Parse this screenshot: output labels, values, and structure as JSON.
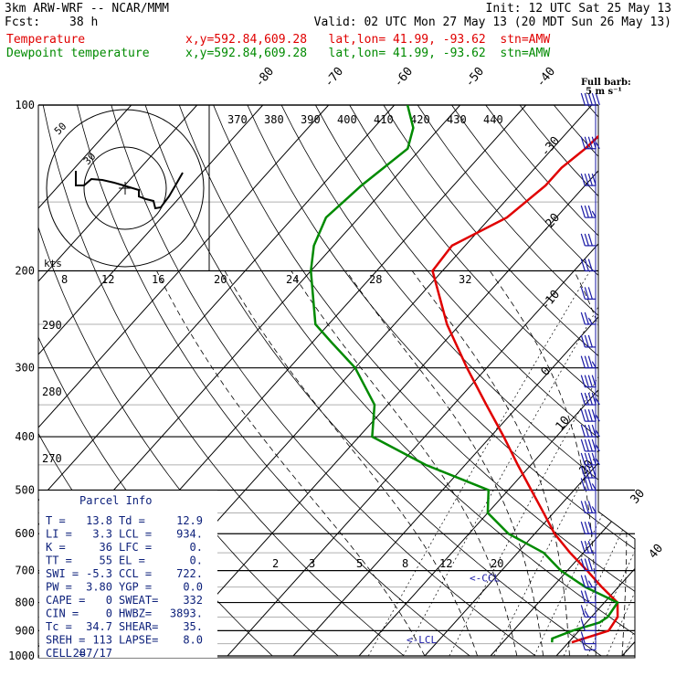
{
  "header": {
    "title": "3km ARW-WRF -- NCAR/MMM",
    "init": "Init: 12 UTC Sat 25 May 13",
    "fcst_label": "Fcst:",
    "fcst_value": "38 h",
    "valid": "Valid: 02 UTC Mon 27 May 13 (20 MDT Sun 26 May 13)",
    "temp_label": "Temperature",
    "temp_loc": "x,y=592.84,609.28   lat,lon= 41.99, -93.62  stn=AMW",
    "dew_label": "Dewpoint temperature",
    "dew_loc": "x,y=592.84,609.28   lat,lon= 41.99, -93.62  stn=AMW"
  },
  "barb_key": {
    "line1": "Full barb:",
    "line2": "5 m s⁻¹"
  },
  "parcel_info": {
    "title": "Parcel Info",
    "rows": [
      [
        "T  =",
        "13.8",
        "Td =",
        "12.9"
      ],
      [
        "LI =",
        "3.3",
        "LCL =",
        "934."
      ],
      [
        "K  =",
        "36",
        "LFC =",
        "0."
      ],
      [
        "TT =",
        "55",
        "EL  =",
        "0."
      ],
      [
        "SWI =",
        "-5.3",
        "CCL =",
        "722."
      ],
      [
        "PW =",
        "3.80",
        "YGP =",
        "0.0"
      ],
      [
        "CAPE =",
        "0",
        "SWEAT=",
        "332"
      ],
      [
        "CIN  =",
        "0",
        "HWBZ=",
        "3893."
      ],
      [
        "Tc  =",
        "34.7",
        "SHEAR=",
        "35."
      ],
      [
        "SREH =",
        "113",
        "LAPSE=",
        "8.0"
      ],
      [
        "CELL =",
        "287/17",
        "",
        ""
      ]
    ]
  },
  "hodograph": {
    "units": "kts",
    "ring_labels": [
      "30",
      "50"
    ]
  },
  "level_labels": {
    "ccl": "<-CCL",
    "lcl": "<-LCL"
  },
  "colors": {
    "temperature": "#e00000",
    "dewpoint": "#008a00",
    "barbs": "#1a1aa6",
    "parcel_text": "#0b1f7a"
  },
  "chart_data": {
    "type": "line",
    "y_scale": "log-pressure",
    "ylim_hpa": [
      1000,
      100
    ],
    "y_ticks": [
      100,
      200,
      300,
      400,
      500,
      600,
      700,
      800,
      900,
      1000
    ],
    "isotherm_labels": [
      "-80",
      "-70",
      "-60",
      "-50",
      "-40",
      "-30",
      "-20",
      "-10",
      "0",
      "10",
      "20",
      "30",
      "40"
    ],
    "theta_labels": [
      "370",
      "380",
      "390",
      "400",
      "410",
      "420",
      "430",
      "440"
    ],
    "mixing_ratio_labels_upper": [
      "8",
      "12",
      "16",
      "20",
      "24",
      "28",
      "32"
    ],
    "mixing_ratio_labels_lower": [
      "2",
      "3",
      "5",
      "8",
      "12",
      "20"
    ],
    "dry_adiabat_labels": [
      "290",
      "280",
      "270"
    ],
    "series": [
      {
        "name": "Temperature",
        "color": "#e00000",
        "points": [
          [
            945,
            20.5
          ],
          [
            900,
            24.5
          ],
          [
            850,
            24.0
          ],
          [
            800,
            22.0
          ],
          [
            750,
            17.5
          ],
          [
            700,
            13.0
          ],
          [
            650,
            8.0
          ],
          [
            600,
            3.0
          ],
          [
            550,
            -1.5
          ],
          [
            500,
            -6.5
          ],
          [
            450,
            -12.0
          ],
          [
            400,
            -18.0
          ],
          [
            350,
            -25.0
          ],
          [
            300,
            -33.0
          ],
          [
            250,
            -42.0
          ],
          [
            200,
            -51.5
          ],
          [
            180,
            -52.0
          ],
          [
            160,
            -47.5
          ],
          [
            140,
            -46.0
          ],
          [
            130,
            -46.0
          ],
          [
            120,
            -45.0
          ],
          [
            110,
            -44.5
          ],
          [
            105,
            -46.0
          ],
          [
            100,
            -48.0
          ]
        ]
      },
      {
        "name": "Dewpoint temperature",
        "color": "#008a00",
        "points": [
          [
            945,
            17.5
          ],
          [
            930,
            17.0
          ],
          [
            900,
            19.0
          ],
          [
            870,
            22.0
          ],
          [
            850,
            22.5
          ],
          [
            800,
            22.0
          ],
          [
            750,
            15.0
          ],
          [
            700,
            9.0
          ],
          [
            650,
            4.0
          ],
          [
            600,
            -4.0
          ],
          [
            550,
            -10.0
          ],
          [
            500,
            -13.0
          ],
          [
            450,
            -26.0
          ],
          [
            400,
            -38.0
          ],
          [
            350,
            -42.0
          ],
          [
            300,
            -50.0
          ],
          [
            270,
            -57.0
          ],
          [
            250,
            -62.0
          ],
          [
            230,
            -65.0
          ],
          [
            200,
            -70.0
          ],
          [
            180,
            -73.0
          ],
          [
            160,
            -75.0
          ],
          [
            140,
            -74.0
          ],
          [
            120,
            -72.0
          ],
          [
            110,
            -74.0
          ],
          [
            100,
            -78.0
          ]
        ]
      }
    ],
    "wind_barbs": [
      {
        "p": 100,
        "speed_kt": 50,
        "dir": 240
      },
      {
        "p": 120,
        "speed_kt": 45,
        "dir": 240
      },
      {
        "p": 140,
        "speed_kt": 40,
        "dir": 240
      },
      {
        "p": 160,
        "speed_kt": 35,
        "dir": 240
      },
      {
        "p": 180,
        "speed_kt": 30,
        "dir": 245
      },
      {
        "p": 200,
        "speed_kt": 30,
        "dir": 250
      },
      {
        "p": 225,
        "speed_kt": 30,
        "dir": 250
      },
      {
        "p": 250,
        "speed_kt": 25,
        "dir": 250
      },
      {
        "p": 275,
        "speed_kt": 30,
        "dir": 255
      },
      {
        "p": 300,
        "speed_kt": 35,
        "dir": 255
      },
      {
        "p": 325,
        "speed_kt": 40,
        "dir": 250
      },
      {
        "p": 350,
        "speed_kt": 45,
        "dir": 250
      },
      {
        "p": 375,
        "speed_kt": 45,
        "dir": 250
      },
      {
        "p": 400,
        "speed_kt": 45,
        "dir": 245
      },
      {
        "p": 425,
        "speed_kt": 45,
        "dir": 245
      },
      {
        "p": 450,
        "speed_kt": 45,
        "dir": 245
      },
      {
        "p": 475,
        "speed_kt": 40,
        "dir": 240
      },
      {
        "p": 500,
        "speed_kt": 35,
        "dir": 240
      },
      {
        "p": 550,
        "speed_kt": 35,
        "dir": 235
      },
      {
        "p": 600,
        "speed_kt": 30,
        "dir": 230
      },
      {
        "p": 650,
        "speed_kt": 30,
        "dir": 225
      },
      {
        "p": 700,
        "speed_kt": 30,
        "dir": 220
      },
      {
        "p": 750,
        "speed_kt": 25,
        "dir": 215
      },
      {
        "p": 800,
        "speed_kt": 20,
        "dir": 210
      },
      {
        "p": 850,
        "speed_kt": 15,
        "dir": 200
      },
      {
        "p": 900,
        "speed_kt": 10,
        "dir": 180
      },
      {
        "p": 950,
        "speed_kt": 10,
        "dir": 160
      },
      {
        "p": 975,
        "speed_kt": 10,
        "dir": 150
      }
    ]
  }
}
